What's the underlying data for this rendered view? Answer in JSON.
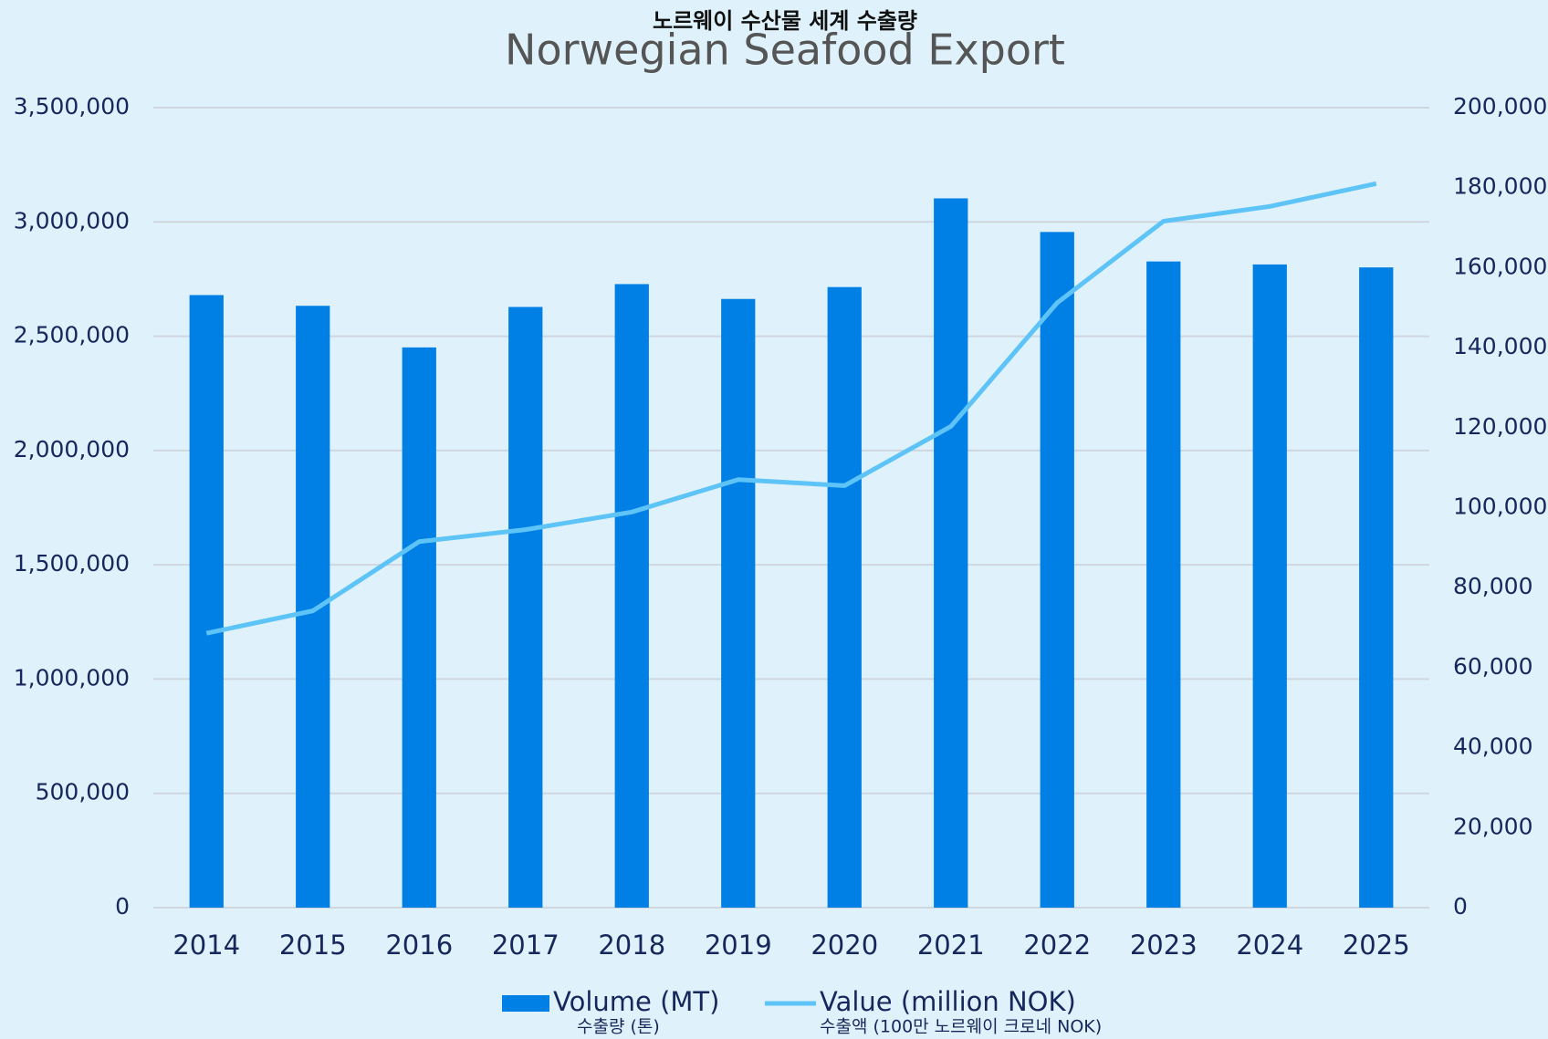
{
  "chart_data": {
    "type": "bar_line",
    "title": "Norwegian Seafood Export",
    "subtitle": "노르웨이 수산물 세계 수출량",
    "categories": [
      "2014",
      "2015",
      "2016",
      "2017",
      "2018",
      "2019",
      "2020",
      "2021",
      "2022",
      "2023",
      "2024",
      "2025"
    ],
    "series": [
      {
        "name": "Volume (MT)",
        "subname": "수출량 (톤)",
        "type": "bar",
        "color": "#0080e5",
        "values": [
          2680000,
          2633000,
          2451000,
          2628000,
          2728000,
          2663000,
          2715000,
          3103000,
          2956000,
          2827000,
          2814000,
          2801000
        ]
      },
      {
        "name": "Value (million NOK)",
        "subname": "수출액 (100만 노르웨이 크로네 NOK)",
        "type": "line",
        "axis": "y2",
        "color": "#5ec4f7",
        "values": [
          68600,
          74200,
          91500,
          94500,
          98900,
          107000,
          105500,
          120300,
          151200,
          171600,
          175300,
          181000
        ]
      }
    ],
    "ylim": [
      0,
      3500000
    ],
    "yticks": [
      {
        "value": 0,
        "label": "0"
      },
      {
        "value": 500000,
        "label": "500,000"
      },
      {
        "value": 1000000,
        "label": "1,000,000"
      },
      {
        "value": 1500000,
        "label": "1,500,000"
      },
      {
        "value": 2000000,
        "label": "2,000,000"
      },
      {
        "value": 2500000,
        "label": "2,500,000"
      },
      {
        "value": 3000000,
        "label": "3,000,000"
      },
      {
        "value": 3500000,
        "label": "3,500,000"
      }
    ],
    "y2lim": [
      0,
      200000
    ],
    "y2ticks": [
      {
        "value": 0,
        "label": "0"
      },
      {
        "value": 20000,
        "label": "20,000"
      },
      {
        "value": 40000,
        "label": "40,000"
      },
      {
        "value": 60000,
        "label": "60,000"
      },
      {
        "value": 80000,
        "label": "80,000"
      },
      {
        "value": 100000,
        "label": "100,000"
      },
      {
        "value": 120000,
        "label": "120,000"
      },
      {
        "value": 140000,
        "label": "140,000"
      },
      {
        "value": 160000,
        "label": "160,000"
      },
      {
        "value": 180000,
        "label": "180,000"
      },
      {
        "value": 200000,
        "label": "200,000"
      }
    ],
    "grid": true,
    "legend": "bottom"
  }
}
